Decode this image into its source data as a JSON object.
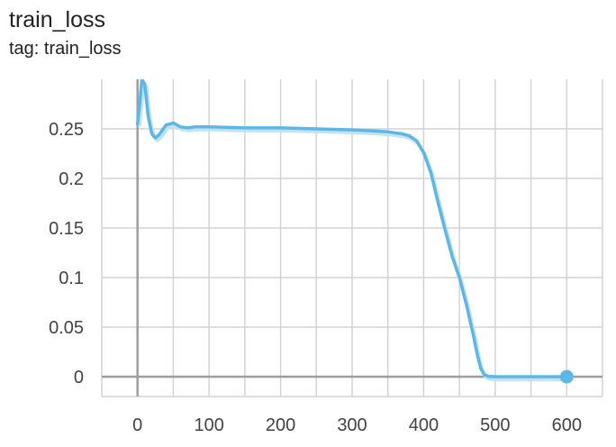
{
  "card": {
    "title": "train_loss",
    "subtitle": "tag: train_loss"
  },
  "chart_data": {
    "type": "line",
    "title": "train_loss",
    "subtitle": "tag: train_loss",
    "xlabel": "",
    "ylabel": "",
    "xlim": [
      -50,
      650
    ],
    "ylim": [
      -0.02,
      0.3
    ],
    "x_ticks": [
      0,
      100,
      200,
      300,
      400,
      500,
      600
    ],
    "y_ticks": [
      0,
      0.05,
      0.1,
      0.15,
      0.2,
      0.25
    ],
    "x_tick_labels": [
      "0",
      "100",
      "200",
      "300",
      "400",
      "500",
      "600"
    ],
    "y_tick_labels": [
      "0",
      "0.05",
      "0.1",
      "0.15",
      "0.2",
      "0.25"
    ],
    "grid": true,
    "colors": {
      "line": "#5bb7e8",
      "raw": "#c3e2f3",
      "grid": "#d3d3d3",
      "axis": "#9e9e9e"
    },
    "series": [
      {
        "x": [
          0,
          3,
          6,
          10,
          15,
          20,
          25,
          30,
          40,
          50,
          60,
          70,
          80,
          100,
          150,
          200,
          250,
          300,
          330,
          350,
          370,
          380,
          390,
          400,
          410,
          420,
          430,
          440,
          450,
          460,
          470,
          475,
          480,
          485,
          490,
          500,
          550,
          600
        ],
        "y": [
          0.255,
          0.275,
          0.3,
          0.295,
          0.262,
          0.245,
          0.241,
          0.244,
          0.254,
          0.256,
          0.252,
          0.251,
          0.252,
          0.252,
          0.251,
          0.251,
          0.25,
          0.249,
          0.248,
          0.247,
          0.245,
          0.243,
          0.238,
          0.226,
          0.206,
          0.176,
          0.148,
          0.121,
          0.1,
          0.072,
          0.04,
          0.022,
          0.008,
          0.002,
          0.0005,
          0,
          0,
          0
        ]
      }
    ],
    "last_point": {
      "x": 600,
      "y": 0
    }
  }
}
